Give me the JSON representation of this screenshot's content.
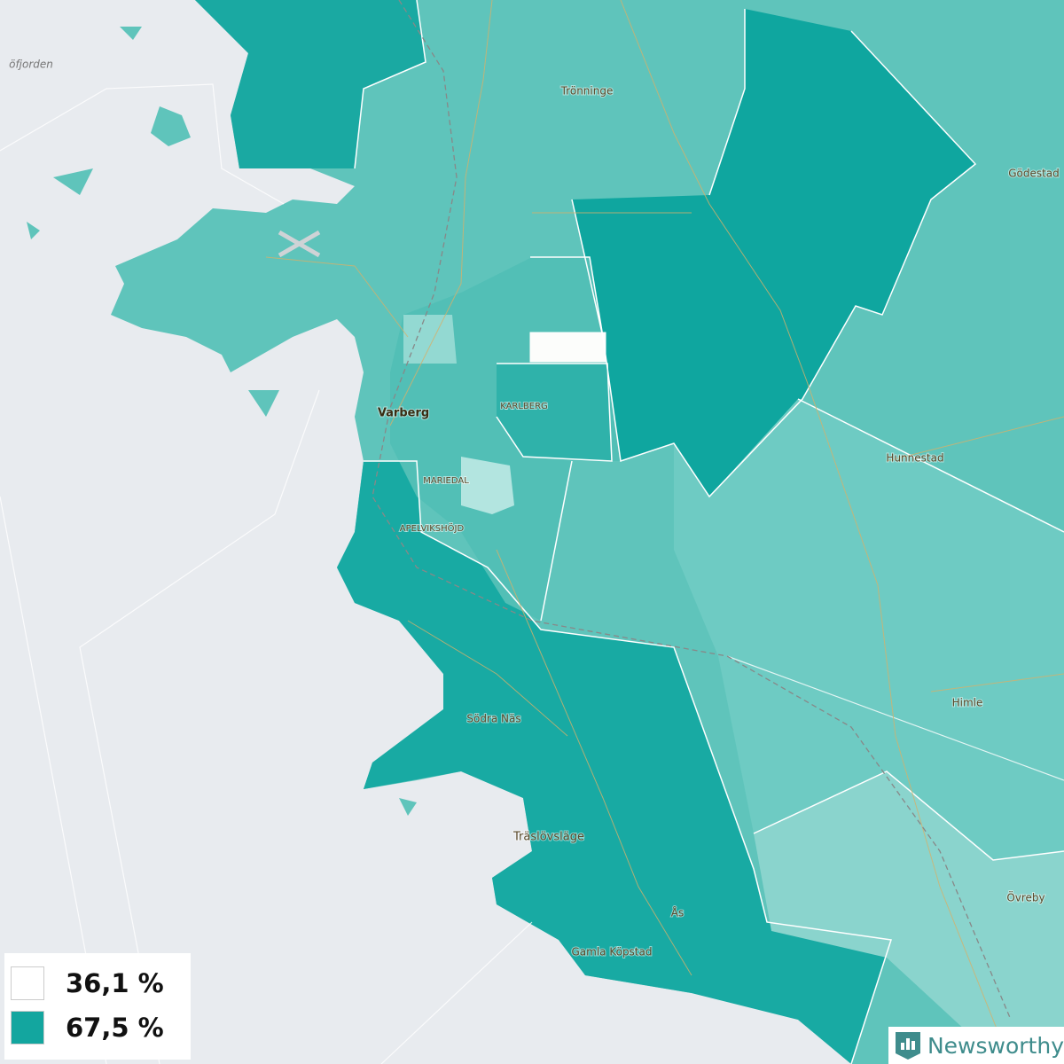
{
  "map": {
    "water_label": "öfjorden",
    "places": [
      "Trönninge",
      "Gödestad",
      "Varberg",
      "KARLBERG",
      "Hunnestad",
      "MARIEDAL",
      "APELVIKSHÖJD",
      "Himle",
      "Södra Näs",
      "Träslövsläge",
      "Övreby",
      "Ås",
      "Gamla Köpstad"
    ]
  },
  "legend": [
    {
      "label": "36,1 %",
      "color": "#ffffff"
    },
    {
      "label": "67,5 %",
      "color": "#13a69f"
    }
  ],
  "brand": "Newsworthy"
}
